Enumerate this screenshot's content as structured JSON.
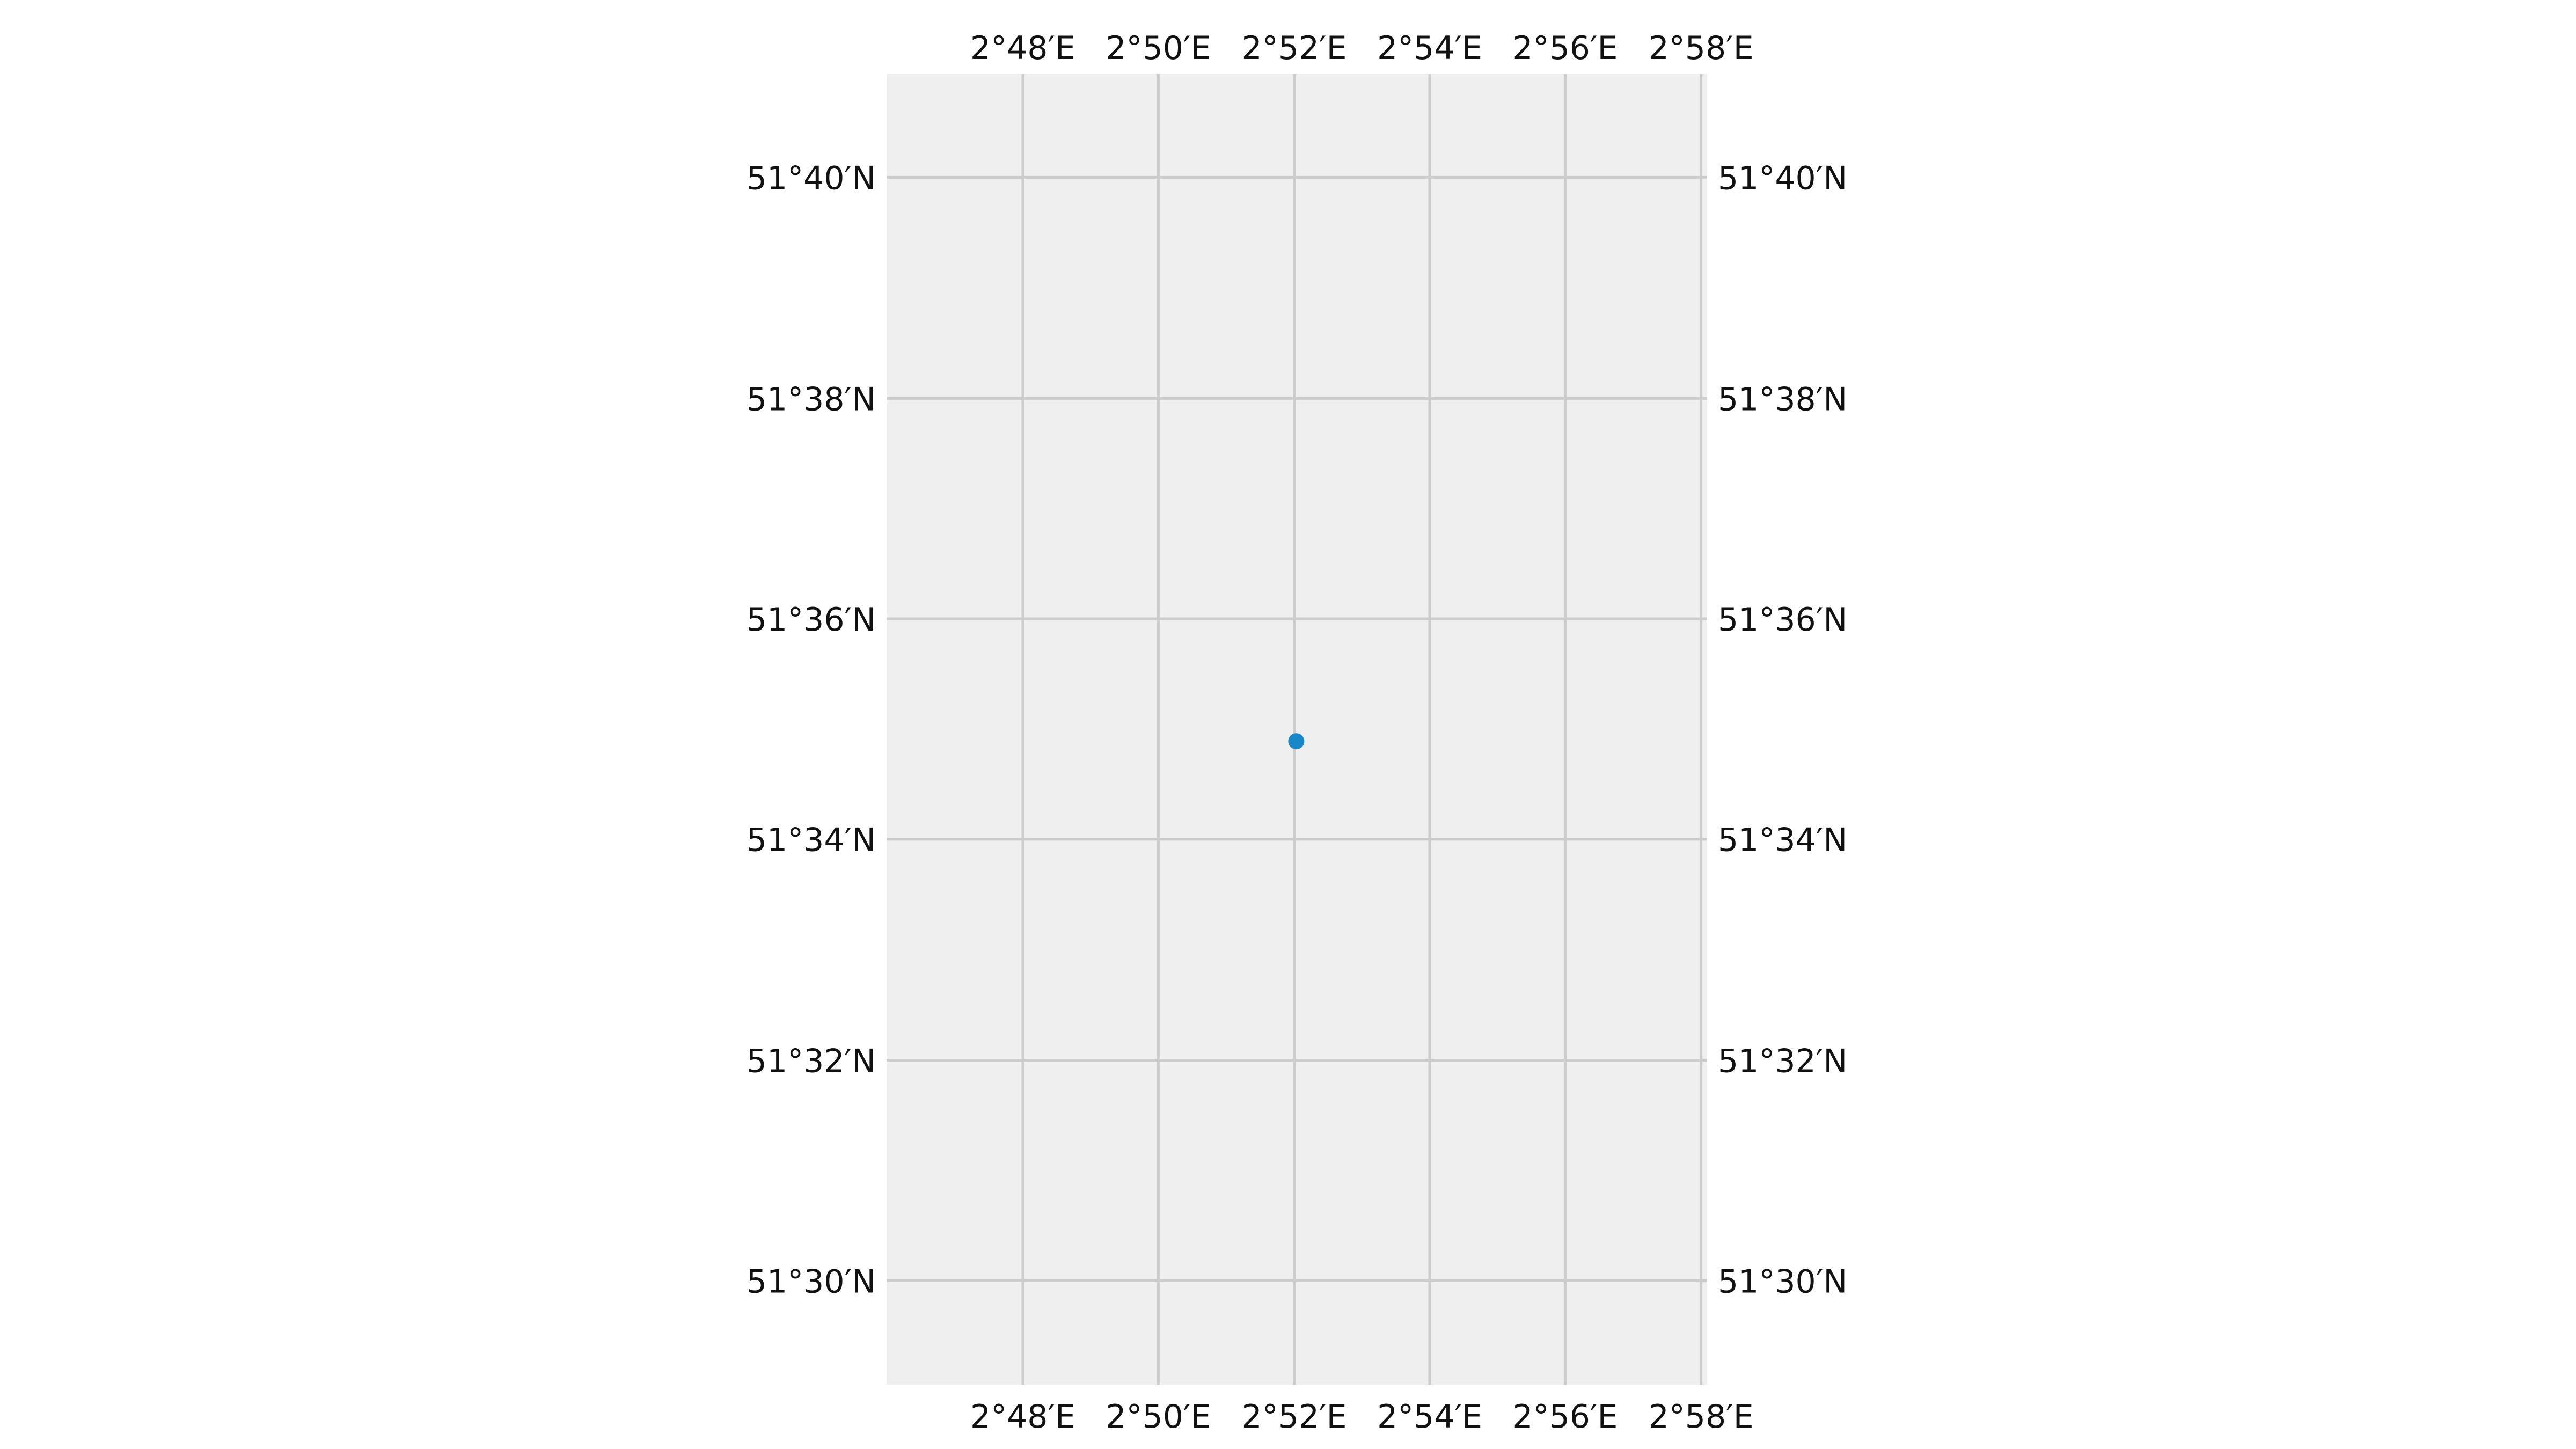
{
  "chart_data": {
    "type": "scatter",
    "title": "",
    "xlabel": "",
    "ylabel": "",
    "x_ticks": [
      2.8,
      2.8333,
      2.8667,
      2.9,
      2.9333,
      2.9667
    ],
    "x_tick_labels": [
      "2°48′E",
      "2°50′E",
      "2°52′E",
      "2°54′E",
      "2°56′E",
      "2°58′E"
    ],
    "y_ticks": [
      51.6667,
      51.6333,
      51.6,
      51.5667,
      51.5333,
      51.5
    ],
    "y_tick_labels": [
      "51°40′N",
      "51°38′N",
      "51°36′N",
      "51°34′N",
      "51°32′N",
      "51°30′N"
    ],
    "xlim": [
      2.7665,
      2.9682
    ],
    "ylim": [
      51.4843,
      51.6823
    ],
    "points": [
      {
        "lon": 2.8672,
        "lat": 51.5815
      }
    ],
    "grid": true,
    "gridline_color": "#cccccc",
    "map_background": "#efefef",
    "point_color": "#1a87c8"
  }
}
